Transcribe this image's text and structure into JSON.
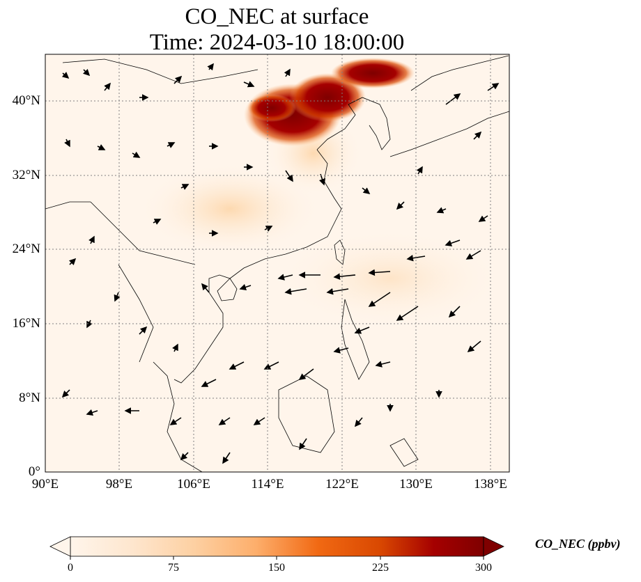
{
  "title_line1": "CO_NEC at surface",
  "title_line2": "Time: 2024-03-10 18:00:00",
  "map": {
    "projection": "PlateCarree",
    "lon_range": [
      90,
      140
    ],
    "lat_range": [
      0,
      45
    ],
    "x_ticks": [
      "90°E",
      "98°E",
      "106°E",
      "114°E",
      "122°E",
      "130°E",
      "138°E"
    ],
    "y_ticks": [
      "0°",
      "8°N",
      "16°N",
      "24°N",
      "32°N",
      "40°N"
    ],
    "gridlines": "dotted gray",
    "field": "CO_NEC concentration (filled), wind vectors (arrows)",
    "plume_max_region": "North China Plain / Bohai (approx 114–126°E, 35–44°N)"
  },
  "colorbar": {
    "label": "CO_NEC (ppbv)",
    "ticks": [
      "0",
      "75",
      "150",
      "225",
      "300"
    ],
    "min": 0,
    "max": 300,
    "extend": "both",
    "colormap": [
      "#fff5eb",
      "#fee6ce",
      "#fdd0a2",
      "#fdae6b",
      "#fd8d3c",
      "#f16913",
      "#d94801",
      "#a50000",
      "#7f0000"
    ]
  },
  "colors": {
    "ocean_land_bg": "#fff5eb",
    "grid": "#808080",
    "arrow": "#000000"
  }
}
